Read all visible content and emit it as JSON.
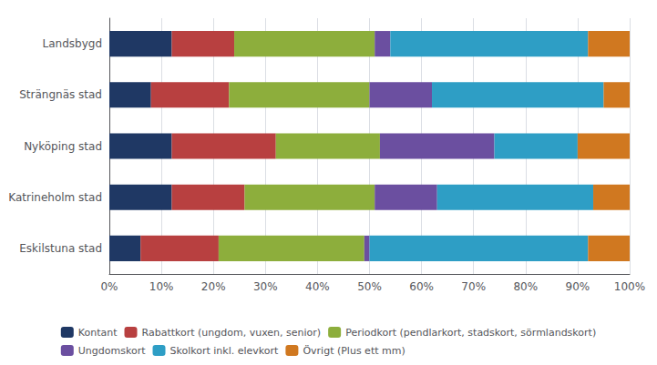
{
  "chart_data": {
    "type": "bar",
    "orientation": "horizontal",
    "stacked": true,
    "grid": true,
    "legend": "bottom",
    "categories": [
      "Eskilstuna stad",
      "Katrineholm stad",
      "Nyköping stad",
      "Strängnäs stad",
      "Landsbygd"
    ],
    "series": [
      {
        "name": "Kontant",
        "color": "#1F3864",
        "values": [
          6,
          12,
          12,
          8,
          12
        ]
      },
      {
        "name": "Rabattkort (ungdom, vuxen, senior)",
        "color": "#B84040",
        "values": [
          15,
          14,
          20,
          15,
          12
        ]
      },
      {
        "name": "Periodkort (pendlarkort, stadskort, sörmlandskort)",
        "color": "#8DAE3C",
        "values": [
          28,
          25,
          20,
          27,
          27
        ]
      },
      {
        "name": "Ungdomskort",
        "color": "#6B4FA0",
        "values": [
          1,
          12,
          22,
          12,
          3
        ]
      },
      {
        "name": "Skolkort inkl. elevkort",
        "color": "#2E9EC5",
        "values": [
          42,
          30,
          16,
          33,
          38
        ]
      },
      {
        "name": "Övrigt (Plus ett mm)",
        "color": "#D07820",
        "values": [
          8,
          7,
          10,
          5,
          8
        ]
      }
    ],
    "xlim": [
      0,
      100
    ],
    "xticks": [
      {
        "value": 0,
        "label": "0%"
      },
      {
        "value": 10,
        "label": "10%"
      },
      {
        "value": 20,
        "label": "20%"
      },
      {
        "value": 30,
        "label": "30%"
      },
      {
        "value": 40,
        "label": "40%"
      },
      {
        "value": 50,
        "label": "50%"
      },
      {
        "value": 60,
        "label": "60%"
      },
      {
        "value": 70,
        "label": "70%"
      },
      {
        "value": 80,
        "label": "80%"
      },
      {
        "value": 90,
        "label": "90%"
      },
      {
        "value": 100,
        "label": "100%"
      }
    ]
  }
}
